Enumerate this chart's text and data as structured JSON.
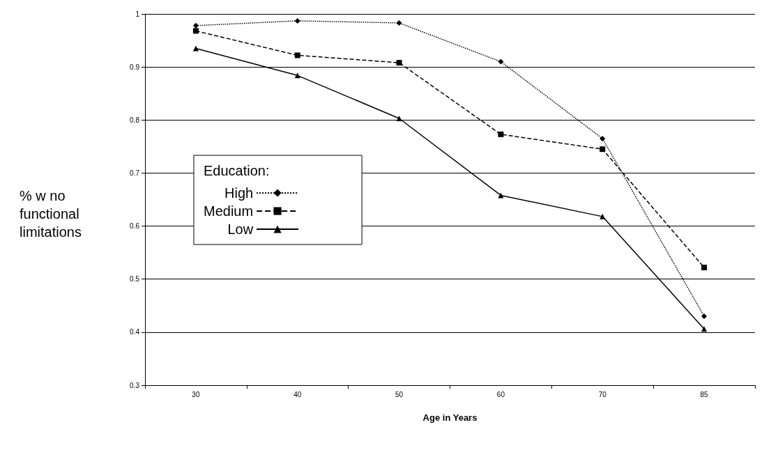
{
  "chart_data": {
    "type": "line",
    "xlabel": "Age in Years",
    "ylabel": "% w no functional limitations",
    "legend_title": "Education:",
    "categories": [
      "30",
      "40",
      "50",
      "60",
      "70",
      "85"
    ],
    "series": [
      {
        "name": "High",
        "color": "#000000",
        "marker": "diamond",
        "line_style": "dotted",
        "values": [
          0.978,
          0.987,
          0.983,
          0.91,
          0.765,
          0.43
        ]
      },
      {
        "name": "Medium",
        "color": "#000000",
        "marker": "square",
        "line_style": "dashed",
        "values": [
          0.968,
          0.922,
          0.908,
          0.773,
          0.745,
          0.522
        ]
      },
      {
        "name": "Low",
        "color": "#000000",
        "marker": "triangle",
        "line_style": "solid",
        "values": [
          0.935,
          0.884,
          0.803,
          0.658,
          0.618,
          0.406
        ]
      }
    ],
    "ylim": [
      0.3,
      1
    ],
    "yticks": [
      0.3,
      0.4,
      0.5,
      0.6,
      0.7,
      0.8,
      0.9,
      1
    ],
    "grid": "y",
    "legend": "center left"
  }
}
